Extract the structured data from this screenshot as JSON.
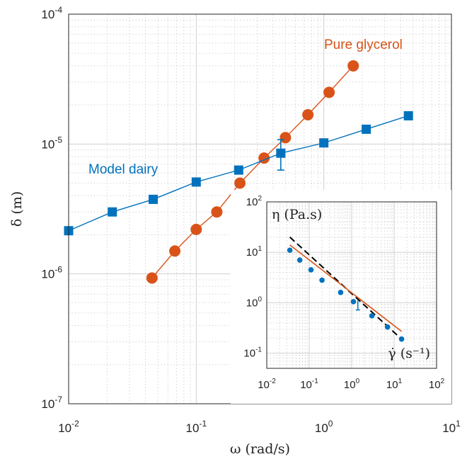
{
  "chart_data": [
    {
      "type": "line",
      "xscale": "log",
      "yscale": "log",
      "xlim": [
        0.01,
        10
      ],
      "ylim": [
        1e-07,
        0.0001
      ],
      "grid": true,
      "xlabel": "ω (rad/s)",
      "ylabel": "δ (m)",
      "xtick_labels": [
        {
          "base": "10",
          "exp": "-2"
        },
        {
          "base": "10",
          "exp": "-1"
        },
        {
          "base": "10",
          "exp": "0"
        },
        {
          "base": "10",
          "exp": "1"
        }
      ],
      "ytick_labels": [
        {
          "base": "10",
          "exp": "-7"
        },
        {
          "base": "10",
          "exp": "-6"
        },
        {
          "base": "10",
          "exp": "-5"
        },
        {
          "base": "10",
          "exp": "-4"
        }
      ],
      "series": [
        {
          "name": "Pure glycerol",
          "color": "#D95319",
          "marker": "circle",
          "x": [
            0.045,
            0.068,
            0.1,
            0.145,
            0.22,
            0.34,
            0.5,
            0.75,
            1.1,
            1.7
          ],
          "y": [
            9.3e-07,
            1.5e-06,
            2.2e-06,
            3e-06,
            5e-06,
            7.8e-06,
            1.12e-05,
            1.68e-05,
            2.5e-05,
            4e-05
          ]
        },
        {
          "name": "Model dairy",
          "color": "#0072BD",
          "marker": "square",
          "x": [
            0.01,
            0.022,
            0.046,
            0.1,
            0.215,
            0.46,
            1.0,
            2.15,
            4.6
          ],
          "y": [
            2.15e-06,
            3e-06,
            3.75e-06,
            5.1e-06,
            6.3e-06,
            8.5e-06,
            1.02e-05,
            1.3e-05,
            1.65e-05
          ],
          "error_bar": {
            "x": 0.46,
            "low": 6.3e-06,
            "high": 1.08e-05
          }
        }
      ]
    },
    {
      "type": "scatter",
      "inset": true,
      "xscale": "log",
      "yscale": "log",
      "xlim": [
        0.01,
        100
      ],
      "ylim": [
        0.05,
        100
      ],
      "grid": true,
      "xlabel": "γ̇ (s⁻¹)",
      "ylabel": "η (Pa.s)",
      "xtick_labels": [
        {
          "base": "10",
          "exp": "-2"
        },
        {
          "base": "10",
          "exp": "-1"
        },
        {
          "base": "10",
          "exp": "0"
        },
        {
          "base": "10",
          "exp": "1"
        },
        {
          "base": "10",
          "exp": "2"
        }
      ],
      "ytick_labels": [
        {
          "base": "10",
          "exp": "-1"
        },
        {
          "base": "10",
          "exp": "0"
        },
        {
          "base": "10",
          "exp": "1"
        },
        {
          "base": "10",
          "exp": "2"
        }
      ],
      "series": [
        {
          "marker": "dot",
          "color": "#0072BD",
          "x": [
            0.035,
            0.06,
            0.11,
            0.2,
            0.55,
            1.1,
            3.0,
            7.0,
            15.0
          ],
          "y": [
            11.0,
            7.0,
            4.5,
            2.8,
            1.6,
            1.05,
            0.55,
            0.33,
            0.19
          ],
          "error_bar": {
            "x": 1.4,
            "low": 0.72,
            "high": 1.1
          }
        },
        {
          "style": "dashed",
          "color": "#000000",
          "x": [
            0.035,
            14.0
          ],
          "y": [
            20.0,
            0.2
          ]
        },
        {
          "style": "solid",
          "color": "#D95319",
          "x": [
            0.035,
            15.0
          ],
          "y": [
            14.0,
            0.27
          ]
        }
      ]
    }
  ]
}
